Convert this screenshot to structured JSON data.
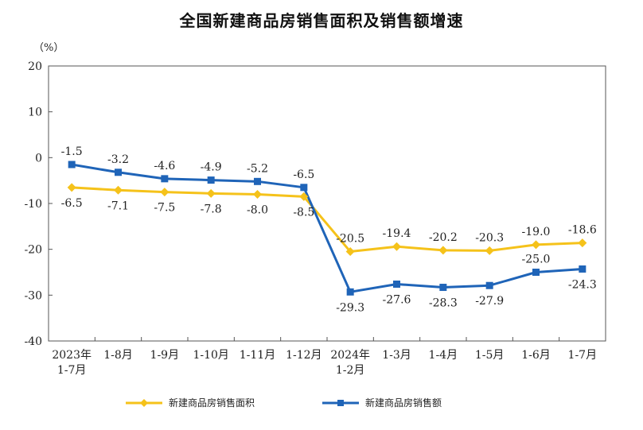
{
  "chart_data": {
    "type": "line",
    "title": "全国新建商品房销售面积及销售额增速",
    "unit_label": "（%）",
    "ylim": [
      -40,
      20
    ],
    "yticks": [
      "20",
      "10",
      "0",
      "-10",
      "-20",
      "-30",
      "-40"
    ],
    "categories": [
      "2023年 1-7月",
      "1-8月",
      "1-9月",
      "1-10月",
      "1-11月",
      "1-12月",
      "2024年 1-2月",
      "1-3月",
      "1-4月",
      "1-5月",
      "1-6月",
      "1-7月"
    ],
    "category_lines": [
      [
        "2023年",
        "1-7月"
      ],
      [
        "1-8月"
      ],
      [
        "1-9月"
      ],
      [
        "1-10月"
      ],
      [
        "1-11月"
      ],
      [
        "1-12月"
      ],
      [
        "2024年",
        "1-2月"
      ],
      [
        "1-3月"
      ],
      [
        "1-4月"
      ],
      [
        "1-5月"
      ],
      [
        "1-6月"
      ],
      [
        "1-7月"
      ]
    ],
    "series": [
      {
        "name": "新建商品房销售面积",
        "color": "#F5C21A",
        "marker": "diamond",
        "values": [
          -6.5,
          -7.1,
          -7.5,
          -7.8,
          -8.0,
          -8.5,
          -20.5,
          -19.4,
          -20.2,
          -20.3,
          -19.0,
          -18.6
        ],
        "labels": [
          "-6.5",
          "-7.1",
          "-7.5",
          "-7.8",
          "-8.0",
          "-8.5",
          "-20.5",
          "-19.4",
          "-20.2",
          "-20.3",
          "-19.0",
          "-18.6"
        ],
        "label_pos": [
          "below",
          "below",
          "below",
          "below",
          "below",
          "below",
          "above",
          "above",
          "above",
          "above",
          "above",
          "above"
        ]
      },
      {
        "name": "新建商品房销售额",
        "color": "#1F64B8",
        "marker": "square",
        "values": [
          -1.5,
          -3.2,
          -4.6,
          -4.9,
          -5.2,
          -6.5,
          -29.3,
          -27.6,
          -28.3,
          -27.9,
          -25.0,
          -24.3
        ],
        "labels": [
          "-1.5",
          "-3.2",
          "-4.6",
          "-4.9",
          "-5.2",
          "-6.5",
          "-29.3",
          "-27.6",
          "-28.3",
          "-27.9",
          "-25.0",
          "-24.3"
        ],
        "label_pos": [
          "above",
          "above",
          "above",
          "above",
          "above",
          "above",
          "below",
          "below",
          "below",
          "below",
          "above",
          "below"
        ]
      }
    ],
    "grid": false,
    "legend": "bottom"
  }
}
